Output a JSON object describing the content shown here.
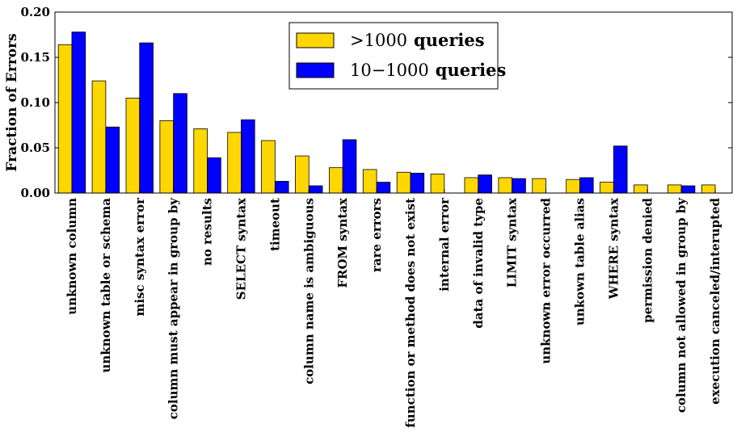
{
  "chart_data": {
    "type": "bar",
    "ylabel": "Fraction of Errors",
    "ylim": [
      0,
      0.2
    ],
    "yticks": [
      "0.00",
      "0.05",
      "0.10",
      "0.15",
      "0.20"
    ],
    "grid": false,
    "legend_position": "top-center",
    "categories": [
      "unknown column",
      "unknown table or schema",
      "misc syntax error",
      "column must appear in group by",
      "no results",
      "SELECT syntax",
      "timeout",
      "column name is ambiguous",
      "FROM syntax",
      "rare errors",
      "function or method does not exist",
      "internal error",
      "data of invalid type",
      "LIMIT syntax",
      "unknown error occurred",
      "unkown table alias",
      "WHERE syntax",
      "permission denied",
      "column not allowed in group by",
      "execution canceled/interupted"
    ],
    "series": [
      {
        "name": ">1000 queries",
        "legend_prefix": ">1000",
        "legend_suffix": "queries",
        "color": "#FFD700",
        "values": [
          0.164,
          0.124,
          0.105,
          0.08,
          0.071,
          0.067,
          0.058,
          0.041,
          0.028,
          0.026,
          0.023,
          0.021,
          0.017,
          0.017,
          0.016,
          0.015,
          0.012,
          0.009,
          0.009,
          0.009
        ]
      },
      {
        "name": "10−1000 queries",
        "legend_prefix": "10−1000",
        "legend_suffix": "queries",
        "color": "#0000FF",
        "values": [
          0.178,
          0.073,
          0.166,
          0.11,
          0.039,
          0.081,
          0.013,
          0.008,
          0.059,
          0.012,
          0.022,
          0.0,
          0.02,
          0.016,
          0.0,
          0.017,
          0.052,
          0.0,
          0.008,
          0.0
        ]
      }
    ]
  }
}
